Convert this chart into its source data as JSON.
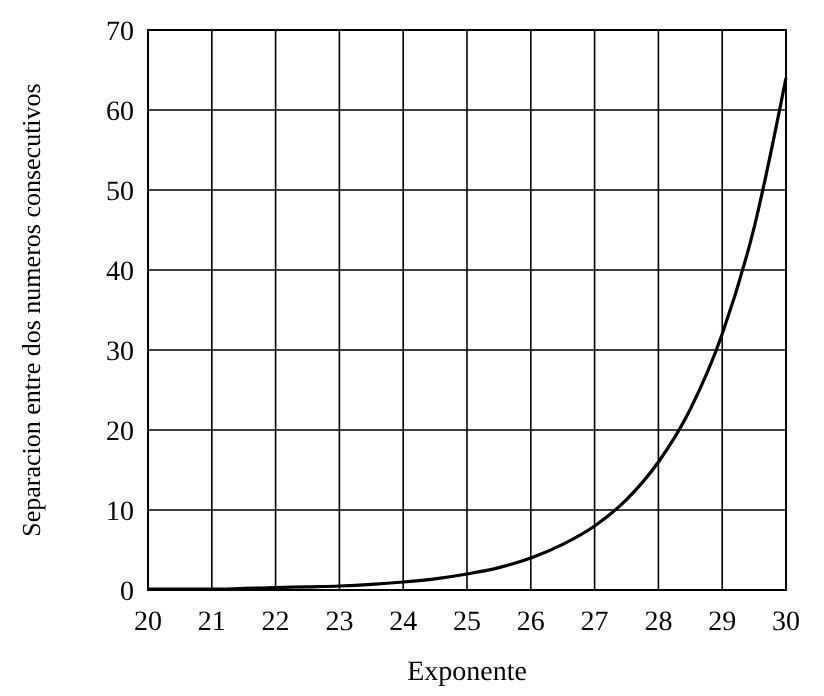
{
  "chart_data": {
    "type": "line",
    "xlabel": "Exponente",
    "ylabel": "Separacion entre dos numeros consecutivos",
    "x": [
      20,
      20.5,
      21,
      21.5,
      22,
      22.5,
      23,
      23.5,
      24,
      24.5,
      25,
      25.5,
      26,
      26.5,
      27,
      27.5,
      28,
      28.5,
      29,
      29.5,
      30
    ],
    "series": [
      {
        "color": "#000000",
        "values": [
          0.1,
          0.1,
          0.1,
          0.2,
          0.3,
          0.4,
          0.5,
          0.7,
          1,
          1.4,
          2,
          2.8,
          4,
          5.7,
          8,
          11.3,
          16,
          22.6,
          32,
          45.3,
          64
        ]
      }
    ],
    "xlim": [
      20,
      30
    ],
    "xticks": [
      20,
      21,
      22,
      23,
      24,
      25,
      26,
      27,
      28,
      29,
      30
    ],
    "ylim": [
      0,
      70
    ],
    "yticks": [
      0,
      10,
      20,
      30,
      40,
      50,
      60,
      70
    ],
    "grid": true,
    "marker": "none",
    "line_style": "solid"
  }
}
